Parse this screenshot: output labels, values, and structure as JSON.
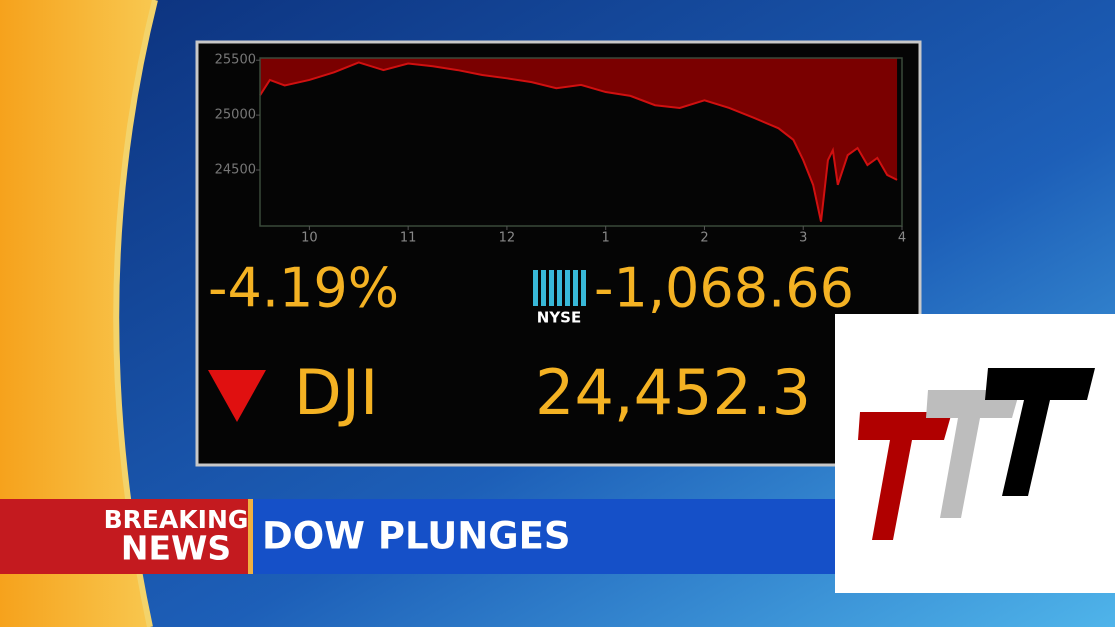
{
  "chart_data": {
    "type": "area",
    "x": [
      9.5,
      9.6,
      9.75,
      10,
      10.25,
      10.5,
      10.75,
      11,
      11.25,
      11.5,
      11.75,
      12,
      12.25,
      12.5,
      12.75,
      13,
      13.25,
      13.5,
      13.75,
      14,
      14.25,
      14.5,
      14.75,
      14.9,
      15,
      15.1,
      15.18,
      15.25,
      15.3,
      15.35,
      15.45,
      15.55,
      15.65,
      15.75,
      15.85,
      15.95
    ],
    "values": [
      25180,
      25320,
      25270,
      25320,
      25390,
      25480,
      25410,
      25470,
      25445,
      25410,
      25365,
      25335,
      25300,
      25245,
      25275,
      25210,
      25175,
      25090,
      25065,
      25135,
      25065,
      24975,
      24880,
      24775,
      24590,
      24365,
      24030,
      24590,
      24680,
      24365,
      24635,
      24700,
      24545,
      24610,
      24455,
      24410
    ],
    "color": "#d01010",
    "area_color": "#7a0000",
    "xlim": [
      9.5,
      16
    ],
    "ylim": [
      23990,
      25520
    ],
    "xticks": [
      10,
      11,
      12,
      {
        "value": 13,
        "label": "1"
      },
      {
        "value": 14,
        "label": "2"
      },
      {
        "value": 15,
        "label": "3"
      },
      {
        "value": 16,
        "label": "4"
      }
    ],
    "yticks": [
      24500,
      25000,
      25500
    ]
  },
  "ticker": {
    "percent": "-4.19%",
    "exchange": "NYSE",
    "change": "-1,068.66",
    "symbol": "DJI",
    "price": "24,452.3"
  },
  "banner": {
    "tag_line1": "BREAKING",
    "tag_line2": "NEWS",
    "headline": "DOW PLUNGES"
  }
}
